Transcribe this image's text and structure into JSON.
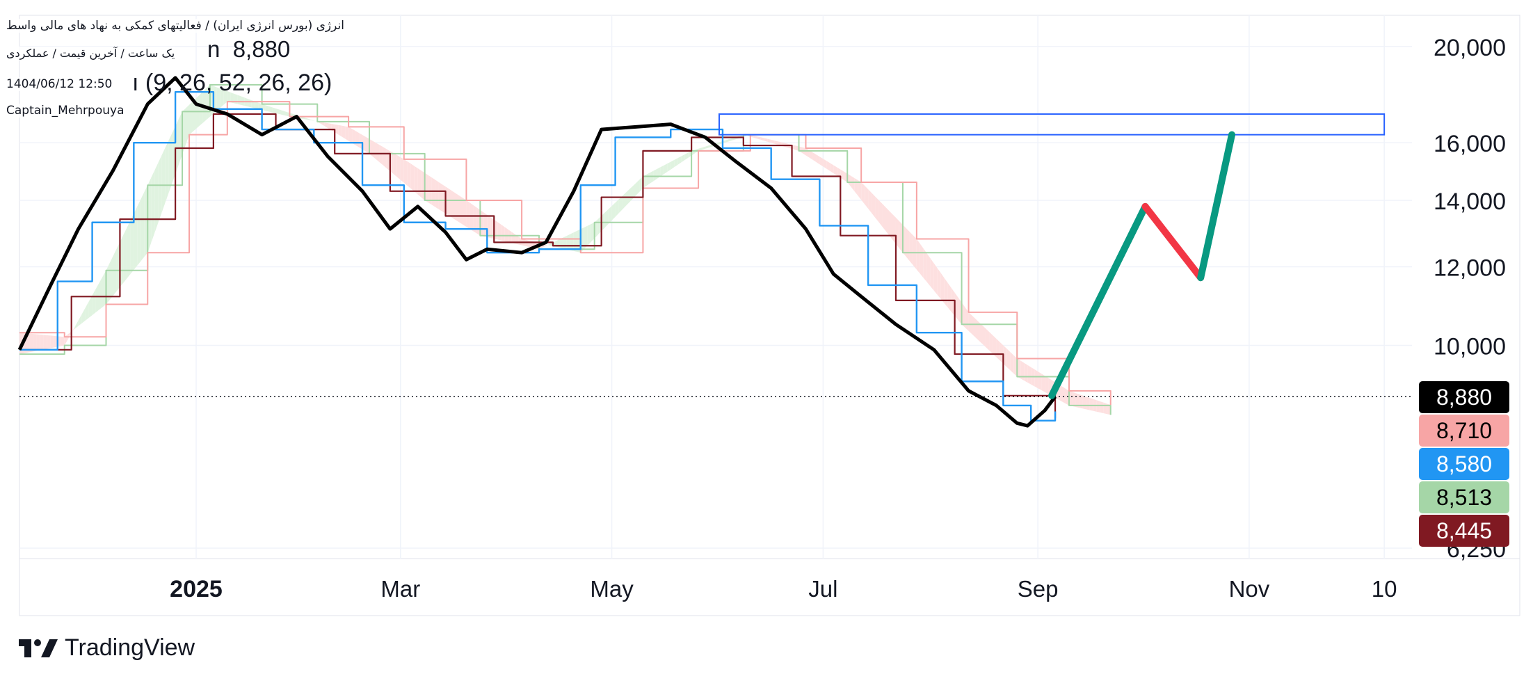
{
  "header": {
    "title": "انرژی (بورس انرژی ایران) / فعالیتهای کمکی به نهاد های مالی واسط",
    "price_prefix": "n",
    "price": "8,880",
    "subtitle": "یک ساعت / آخرین قیمت / عملکردی",
    "ichimoku_prefix": "ı",
    "ichimoku_params": "(9, 26, 52, 26, 26)",
    "datetime": "1404/06/12 12:50",
    "author": "Captain_Mehrpouya"
  },
  "footer": {
    "logo_text": "TradingView"
  },
  "colors": {
    "price": "#000000",
    "tenkan": "#2196f3",
    "kijun": "#801922",
    "senkou_a": "#a5d6a7",
    "senkou_b": "#f7a5a5",
    "cloud_bull": "#e0f3e0",
    "cloud_bear": "#fde0e0",
    "projection_up": "#089981",
    "projection_down": "#f23645",
    "target_box": "#2962ff"
  },
  "chart_data": {
    "type": "line",
    "x_axis": {
      "ticks": [
        {
          "label": "2025",
          "date": "2025-01-01"
        },
        {
          "label": "Mar",
          "date": "2025-03-01"
        },
        {
          "label": "May",
          "date": "2025-05-01"
        },
        {
          "label": "Jul",
          "date": "2025-07-01"
        },
        {
          "label": "Sep",
          "date": "2025-09-01"
        },
        {
          "label": "Nov",
          "date": "2025-11-01"
        },
        {
          "label": "10",
          "date": "2025-12-10"
        }
      ],
      "range": [
        "2024-11-11",
        "2025-12-18"
      ]
    },
    "y_axis": {
      "scale": "log",
      "range": [
        6100,
        21500
      ],
      "ticks": [
        "20,000",
        "16,000",
        "14,000",
        "12,000",
        "10,000",
        "6,250"
      ]
    },
    "last_price_line": 8880,
    "price_labels": [
      {
        "label": "8,880",
        "color": "#000000",
        "value": 8880
      },
      {
        "label": "8,710",
        "color": "#f7a5a5",
        "value": 8710
      },
      {
        "label": "8,580",
        "color": "#2196f3",
        "value": 8580
      },
      {
        "label": "8,513",
        "color": "#a5d6a7",
        "value": 8513
      },
      {
        "label": "8,445",
        "color": "#801922",
        "value": 8445
      }
    ],
    "series": [
      {
        "name": "Price",
        "points": [
          {
            "date": "2024-11-11",
            "value": 9900
          },
          {
            "date": "2024-11-20",
            "value": 11500
          },
          {
            "date": "2024-11-28",
            "value": 13100
          },
          {
            "date": "2024-12-08",
            "value": 15000
          },
          {
            "date": "2024-12-18",
            "value": 17500
          },
          {
            "date": "2024-12-26",
            "value": 18600
          },
          {
            "date": "2025-01-01",
            "value": 17500
          },
          {
            "date": "2025-01-10",
            "value": 17100
          },
          {
            "date": "2025-01-20",
            "value": 16300
          },
          {
            "date": "2025-01-30",
            "value": 17000
          },
          {
            "date": "2025-02-08",
            "value": 15500
          },
          {
            "date": "2025-02-18",
            "value": 14300
          },
          {
            "date": "2025-02-26",
            "value": 13100
          },
          {
            "date": "2025-03-06",
            "value": 13800
          },
          {
            "date": "2025-03-14",
            "value": 13000
          },
          {
            "date": "2025-03-20",
            "value": 12200
          },
          {
            "date": "2025-03-26",
            "value": 12500
          },
          {
            "date": "2025-04-05",
            "value": 12400
          },
          {
            "date": "2025-04-12",
            "value": 12700
          },
          {
            "date": "2025-04-20",
            "value": 14300
          },
          {
            "date": "2025-04-28",
            "value": 16500
          },
          {
            "date": "2025-05-08",
            "value": 16600
          },
          {
            "date": "2025-05-18",
            "value": 16700
          },
          {
            "date": "2025-05-28",
            "value": 16200
          },
          {
            "date": "2025-06-06",
            "value": 15300
          },
          {
            "date": "2025-06-16",
            "value": 14400
          },
          {
            "date": "2025-06-26",
            "value": 13100
          },
          {
            "date": "2025-07-04",
            "value": 11800
          },
          {
            "date": "2025-07-12",
            "value": 11200
          },
          {
            "date": "2025-07-22",
            "value": 10500
          },
          {
            "date": "2025-08-02",
            "value": 9900
          },
          {
            "date": "2025-08-12",
            "value": 9000
          },
          {
            "date": "2025-08-20",
            "value": 8700
          },
          {
            "date": "2025-08-26",
            "value": 8350
          },
          {
            "date": "2025-08-29",
            "value": 8300
          },
          {
            "date": "2025-09-03",
            "value": 8600
          },
          {
            "date": "2025-09-06",
            "value": 8880
          }
        ]
      },
      {
        "name": "Tenkan",
        "points": [
          {
            "date": "2024-11-11",
            "value": 9900
          },
          {
            "date": "2024-11-22",
            "value": 11600
          },
          {
            "date": "2024-12-02",
            "value": 13300
          },
          {
            "date": "2024-12-14",
            "value": 16000
          },
          {
            "date": "2024-12-26",
            "value": 18000
          },
          {
            "date": "2025-01-06",
            "value": 17300
          },
          {
            "date": "2025-01-20",
            "value": 16500
          },
          {
            "date": "2025-02-04",
            "value": 16000
          },
          {
            "date": "2025-02-18",
            "value": 14500
          },
          {
            "date": "2025-03-02",
            "value": 13300
          },
          {
            "date": "2025-03-14",
            "value": 13100
          },
          {
            "date": "2025-03-26",
            "value": 12400
          },
          {
            "date": "2025-04-10",
            "value": 12500
          },
          {
            "date": "2025-04-22",
            "value": 14500
          },
          {
            "date": "2025-05-02",
            "value": 16200
          },
          {
            "date": "2025-05-18",
            "value": 16500
          },
          {
            "date": "2025-06-02",
            "value": 15800
          },
          {
            "date": "2025-06-16",
            "value": 14700
          },
          {
            "date": "2025-06-30",
            "value": 13200
          },
          {
            "date": "2025-07-14",
            "value": 11500
          },
          {
            "date": "2025-07-28",
            "value": 10300
          },
          {
            "date": "2025-08-10",
            "value": 9200
          },
          {
            "date": "2025-08-22",
            "value": 8700
          },
          {
            "date": "2025-08-30",
            "value": 8400
          },
          {
            "date": "2025-09-06",
            "value": 8580
          }
        ]
      },
      {
        "name": "Kijun",
        "points": [
          {
            "date": "2024-11-11",
            "value": 9900
          },
          {
            "date": "2024-11-26",
            "value": 11200
          },
          {
            "date": "2024-12-10",
            "value": 13400
          },
          {
            "date": "2024-12-26",
            "value": 15800
          },
          {
            "date": "2025-01-06",
            "value": 17100
          },
          {
            "date": "2025-01-24",
            "value": 16500
          },
          {
            "date": "2025-02-10",
            "value": 15600
          },
          {
            "date": "2025-02-26",
            "value": 14300
          },
          {
            "date": "2025-03-14",
            "value": 13500
          },
          {
            "date": "2025-03-28",
            "value": 12700
          },
          {
            "date": "2025-04-14",
            "value": 12600
          },
          {
            "date": "2025-04-28",
            "value": 14100
          },
          {
            "date": "2025-05-10",
            "value": 15700
          },
          {
            "date": "2025-05-24",
            "value": 16200
          },
          {
            "date": "2025-06-08",
            "value": 15900
          },
          {
            "date": "2025-06-22",
            "value": 14800
          },
          {
            "date": "2025-07-06",
            "value": 12900
          },
          {
            "date": "2025-07-22",
            "value": 11100
          },
          {
            "date": "2025-08-08",
            "value": 9800
          },
          {
            "date": "2025-08-22",
            "value": 8900
          },
          {
            "date": "2025-09-06",
            "value": 8445
          }
        ]
      },
      {
        "name": "Senkou A",
        "points": [
          {
            "date": "2024-11-11",
            "value": 9800
          },
          {
            "date": "2024-11-24",
            "value": 10000
          },
          {
            "date": "2024-12-06",
            "value": 11900
          },
          {
            "date": "2024-12-18",
            "value": 14500
          },
          {
            "date": "2024-12-28",
            "value": 17200
          },
          {
            "date": "2025-01-05",
            "value": 18300
          },
          {
            "date": "2025-01-20",
            "value": 17500
          },
          {
            "date": "2025-02-05",
            "value": 16800
          },
          {
            "date": "2025-02-20",
            "value": 15600
          },
          {
            "date": "2025-03-08",
            "value": 14000
          },
          {
            "date": "2025-03-24",
            "value": 12900
          },
          {
            "date": "2025-04-10",
            "value": 12500
          },
          {
            "date": "2025-04-26",
            "value": 13300
          },
          {
            "date": "2025-05-10",
            "value": 14800
          },
          {
            "date": "2025-05-24",
            "value": 15700
          },
          {
            "date": "2025-06-08",
            "value": 16300
          },
          {
            "date": "2025-06-24",
            "value": 15700
          },
          {
            "date": "2025-07-08",
            "value": 14600
          },
          {
            "date": "2025-07-24",
            "value": 12400
          },
          {
            "date": "2025-08-10",
            "value": 10500
          },
          {
            "date": "2025-08-26",
            "value": 9300
          },
          {
            "date": "2025-09-10",
            "value": 8700
          },
          {
            "date": "2025-09-22",
            "value": 8513
          }
        ]
      },
      {
        "name": "Senkou B",
        "points": [
          {
            "date": "2024-11-11",
            "value": 10300
          },
          {
            "date": "2024-11-24",
            "value": 10200
          },
          {
            "date": "2024-12-06",
            "value": 11000
          },
          {
            "date": "2024-12-18",
            "value": 12400
          },
          {
            "date": "2024-12-30",
            "value": 16300
          },
          {
            "date": "2025-01-10",
            "value": 17600
          },
          {
            "date": "2025-01-28",
            "value": 17000
          },
          {
            "date": "2025-02-14",
            "value": 16600
          },
          {
            "date": "2025-03-02",
            "value": 15400
          },
          {
            "date": "2025-03-20",
            "value": 14000
          },
          {
            "date": "2025-04-05",
            "value": 12800
          },
          {
            "date": "2025-04-22",
            "value": 12400
          },
          {
            "date": "2025-05-10",
            "value": 14400
          },
          {
            "date": "2025-05-26",
            "value": 15700
          },
          {
            "date": "2025-06-10",
            "value": 16300
          },
          {
            "date": "2025-06-26",
            "value": 15800
          },
          {
            "date": "2025-07-12",
            "value": 14600
          },
          {
            "date": "2025-07-28",
            "value": 12800
          },
          {
            "date": "2025-08-12",
            "value": 10800
          },
          {
            "date": "2025-08-26",
            "value": 9700
          },
          {
            "date": "2025-09-10",
            "value": 9000
          },
          {
            "date": "2025-09-22",
            "value": 8710
          }
        ]
      }
    ],
    "projection": [
      {
        "direction": "up",
        "from": {
          "date": "2025-09-05",
          "value": 8900
        },
        "to": {
          "date": "2025-10-02",
          "value": 13800
        }
      },
      {
        "direction": "down",
        "from": {
          "date": "2025-10-02",
          "value": 13800
        },
        "to": {
          "date": "2025-10-18",
          "value": 11700
        }
      },
      {
        "direction": "up",
        "from": {
          "date": "2025-10-18",
          "value": 11700
        },
        "to": {
          "date": "2025-10-27",
          "value": 16300
        }
      }
    ],
    "target_zone": {
      "from_date": "2025-06-01",
      "to_date": "2025-12-10",
      "low": 16300,
      "high": 17100
    }
  }
}
